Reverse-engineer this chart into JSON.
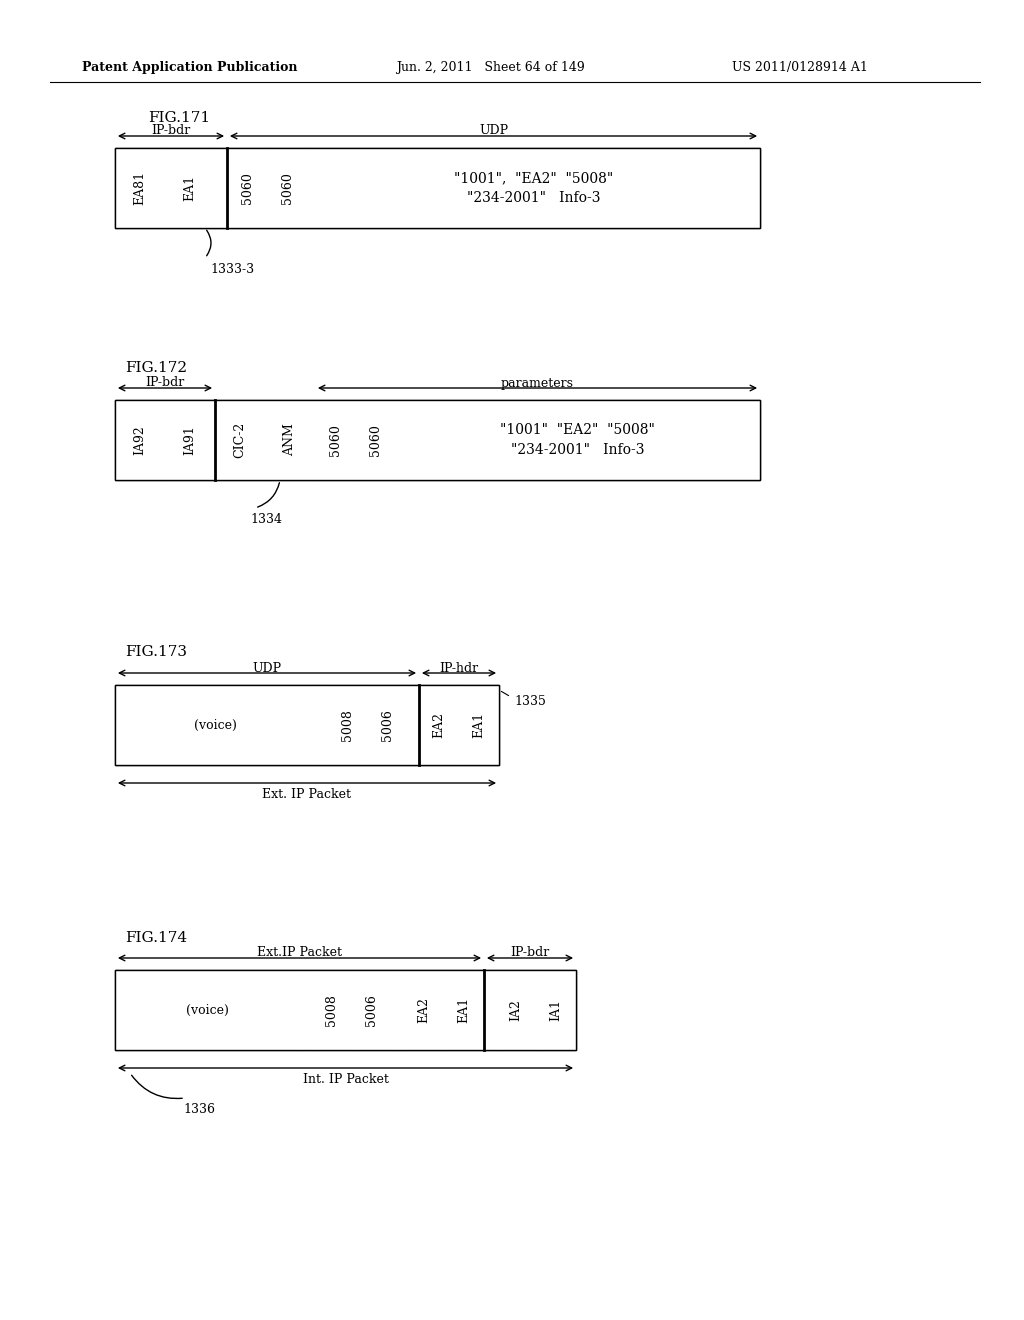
{
  "bg_color": "#ffffff",
  "header_left": "Patent Application Publication",
  "header_mid": "Jun. 2, 2011   Sheet 64 of 149",
  "header_right": "US 2011/0128914 A1",
  "fig171": {
    "title": "FIG.171",
    "bdr_label": "IP-bdr",
    "udp_label": "UDP",
    "cell_labels": [
      "EA81",
      "EA1",
      "",
      "5060",
      "5060"
    ],
    "cell_widths": [
      50,
      50,
      12,
      40,
      40
    ],
    "big_cell_line1": "\"1001\",  \"EA2\"  \"5008\"",
    "big_cell_line2": "\"234-2001\"   Info-3",
    "ref_label": "1333-3"
  },
  "fig172": {
    "title": "FIG.172",
    "bdr_label": "IP-bdr",
    "params_label": "parameters",
    "cell_labels": [
      "IA92",
      "IA91",
      "CIC-2",
      "ANM",
      "5060",
      "5060"
    ],
    "cell_widths": [
      50,
      50,
      50,
      50,
      40,
      40
    ],
    "big_cell_line1": "\"1001\"  \"EA2\"  \"5008\"",
    "big_cell_line2": "\"234-2001\"   Info-3",
    "ref_label": "1334"
  },
  "fig173": {
    "title": "FIG.173",
    "udp_label": "UDP",
    "iphdr_label": "IP-hdr",
    "cell_labels": [
      "(voice)",
      "",
      "5008",
      "5006",
      "",
      "EA2",
      "EA1"
    ],
    "cell_widths": [
      200,
      12,
      40,
      40,
      12,
      40,
      40
    ],
    "ref_label": "1335",
    "bottom_label": "Ext. IP Packet"
  },
  "fig174": {
    "title": "FIG.174",
    "ext_label": "Ext.IP Packet",
    "bdr_label": "IP-bdr",
    "cell_labels": [
      "(voice)",
      "",
      "5008",
      "5006",
      "",
      "EA2",
      "EA1",
      "",
      "IA2",
      "IA1"
    ],
    "cell_widths": [
      185,
      12,
      40,
      40,
      12,
      40,
      40,
      12,
      40,
      40
    ],
    "ref_label": "1336",
    "bottom_label": "Int. IP Packet"
  }
}
